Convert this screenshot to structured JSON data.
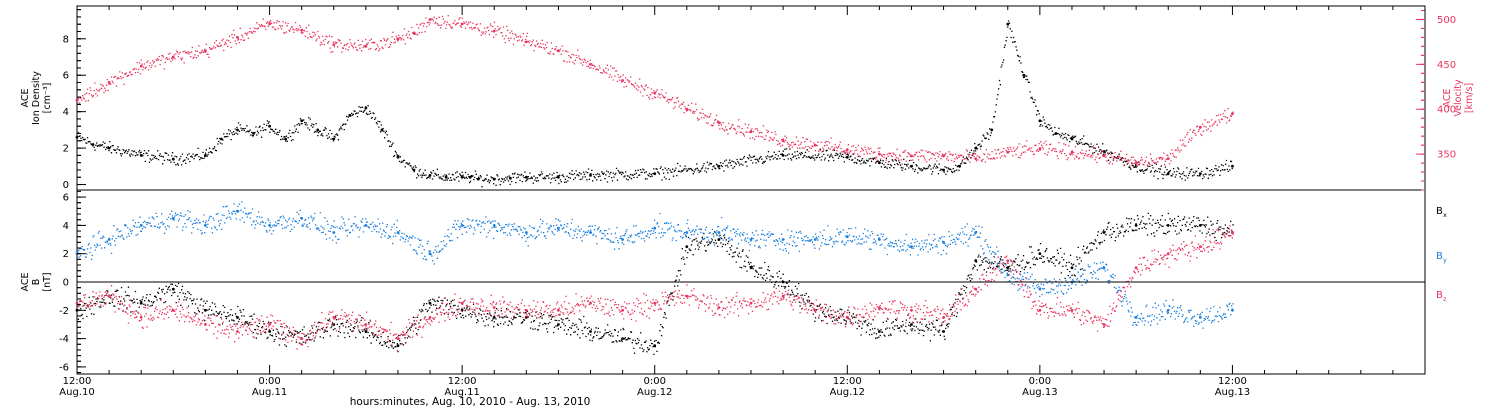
{
  "colors": {
    "black": "#000000",
    "pink": "#e8345f",
    "blue": "#1a7fdc"
  },
  "xaxis": {
    "tick_hours": [
      0,
      12,
      24,
      36,
      48,
      60,
      72,
      84
    ],
    "time_labels": [
      "12:00",
      "0:00",
      "12:00",
      "0:00",
      "12:00",
      "0:00",
      "12:00"
    ],
    "date_labels": [
      "Aug.10",
      "Aug.11",
      "Aug.11",
      "Aug.12",
      "Aug.12",
      "Aug.13",
      "Aug.13"
    ],
    "title": "hours:minutes, Aug. 10, 2010 - Aug. 13, 2010",
    "range_hours": [
      0,
      84
    ],
    "data_end_hours": 72
  },
  "chart_data": [
    {
      "type": "scatter",
      "panel": "top",
      "ylabel_lines": [
        "ACE",
        "Ion Density",
        "[cm⁻³]"
      ],
      "ylabel2_lines": [
        "ACE",
        "Velocity",
        "[km/s]"
      ],
      "ylim": [
        -0.3,
        9.8
      ],
      "ylim2": [
        310,
        515
      ],
      "yticks": [
        0,
        2,
        4,
        6,
        8
      ],
      "yticks2": [
        350,
        400,
        450,
        500
      ],
      "series": [
        {
          "color": "black",
          "axis": "left",
          "x": [
            0,
            1,
            2,
            4,
            6,
            8,
            9,
            10,
            11,
            12,
            13,
            14,
            15,
            16,
            17,
            18,
            19,
            20,
            21,
            22,
            23,
            24,
            24.5,
            25,
            26,
            27,
            28,
            30,
            32,
            36,
            40,
            44,
            48,
            50,
            52,
            54,
            55,
            56,
            57,
            58,
            59,
            60,
            61,
            62,
            64,
            66,
            68,
            70,
            72
          ],
          "y": [
            2.6,
            2.2,
            2.0,
            1.6,
            1.4,
            1.6,
            2.5,
            3.0,
            2.8,
            3.2,
            2.5,
            3.5,
            3.0,
            2.5,
            3.8,
            4.2,
            3.0,
            1.5,
            0.8,
            0.5,
            0.4,
            0.4,
            0.4,
            0.3,
            0.3,
            0.35,
            0.4,
            0.4,
            0.5,
            0.6,
            1.0,
            1.6,
            1.5,
            1.2,
            1.0,
            0.8,
            1.0,
            2.0,
            3.0,
            8.8,
            6.0,
            3.5,
            2.8,
            2.5,
            1.8,
            1.0,
            0.6,
            0.6,
            1.0
          ]
        },
        {
          "color": "pink",
          "axis": "right",
          "x": [
            0,
            2,
            4,
            6,
            8,
            10,
            12,
            14,
            16,
            18,
            20,
            21,
            22,
            24,
            26,
            28,
            30,
            32,
            34,
            36,
            38,
            40,
            42,
            44,
            46,
            48,
            50,
            52,
            54,
            56,
            58,
            60,
            62,
            64,
            66,
            68,
            70,
            72
          ],
          "y": [
            410,
            430,
            448,
            458,
            465,
            480,
            495,
            488,
            472,
            470,
            478,
            485,
            500,
            495,
            487,
            475,
            465,
            450,
            432,
            418,
            400,
            385,
            375,
            365,
            360,
            355,
            350,
            348,
            348,
            345,
            352,
            356,
            352,
            348,
            340,
            345,
            380,
            395
          ]
        }
      ]
    },
    {
      "type": "scatter",
      "panel": "bottom",
      "ylabel_lines": [
        "ACE",
        "B",
        "[nT]"
      ],
      "ylim": [
        -6.5,
        6.5
      ],
      "yticks": [
        -6,
        -4,
        -2,
        0,
        2,
        4,
        6
      ],
      "zero_line": 0,
      "legend": [
        {
          "main": "B",
          "sub": "x",
          "color": "black"
        },
        {
          "main": "B",
          "sub": "y",
          "color": "blue"
        },
        {
          "main": "B",
          "sub": "z",
          "color": "pink"
        }
      ],
      "series": [
        {
          "color": "black",
          "label": "Bx",
          "x": [
            0,
            2,
            4,
            6,
            8,
            10,
            12,
            14,
            16,
            18,
            20,
            22,
            24,
            26,
            28,
            30,
            32,
            34,
            36,
            38,
            40,
            42,
            44,
            46,
            48,
            50,
            52,
            54,
            56,
            58,
            60,
            62,
            64,
            66,
            68,
            70,
            72
          ],
          "y": [
            -2.0,
            -1.0,
            -1.5,
            -0.5,
            -2.0,
            -2.5,
            -3.5,
            -4.0,
            -3.0,
            -3.5,
            -4.5,
            -1.5,
            -2.0,
            -2.5,
            -2.5,
            -3.0,
            -3.5,
            -4.0,
            -4.5,
            2.5,
            3.0,
            1.0,
            0,
            -2.0,
            -2.5,
            -3.5,
            -3.0,
            -3.5,
            1.5,
            1.0,
            2.0,
            1.0,
            3.5,
            4.0,
            4.0,
            4.0,
            3.5
          ]
        },
        {
          "color": "blue",
          "label": "By",
          "x": [
            0,
            2,
            4,
            6,
            8,
            10,
            12,
            14,
            16,
            18,
            20,
            22,
            24,
            26,
            28,
            30,
            32,
            34,
            36,
            38,
            40,
            42,
            44,
            46,
            48,
            50,
            52,
            54,
            56,
            58,
            60,
            62,
            64,
            66,
            68,
            70,
            72
          ],
          "y": [
            2.0,
            3.0,
            4.0,
            4.5,
            4.0,
            5.0,
            4.0,
            4.5,
            3.5,
            4.0,
            3.5,
            2.0,
            4.0,
            4.0,
            3.5,
            3.8,
            3.5,
            3.0,
            3.8,
            3.5,
            3.5,
            3.0,
            3.0,
            3.0,
            3.2,
            3.0,
            2.5,
            2.8,
            3.5,
            0.5,
            -0.5,
            0,
            1.0,
            -2.5,
            -2.0,
            -2.5,
            -2.0
          ]
        },
        {
          "color": "pink",
          "label": "Bz",
          "x": [
            0,
            2,
            4,
            6,
            8,
            10,
            12,
            14,
            16,
            18,
            20,
            22,
            24,
            26,
            28,
            30,
            32,
            34,
            36,
            38,
            40,
            42,
            44,
            46,
            48,
            50,
            52,
            54,
            56,
            58,
            60,
            62,
            64,
            66,
            68,
            70,
            72
          ],
          "y": [
            -1.5,
            -1.0,
            -2.5,
            -2.0,
            -3.0,
            -3.5,
            -3.0,
            -4.0,
            -2.5,
            -3.0,
            -4.0,
            -2.5,
            -1.5,
            -1.8,
            -2.0,
            -2.0,
            -1.5,
            -2.0,
            -1.5,
            -1.0,
            -1.8,
            -1.5,
            -1.0,
            -2.0,
            -2.5,
            -1.8,
            -2.0,
            -2.5,
            -0.5,
            1.5,
            -2.0,
            -2.0,
            -3.0,
            1.0,
            2.0,
            2.5,
            3.5
          ]
        }
      ]
    }
  ]
}
